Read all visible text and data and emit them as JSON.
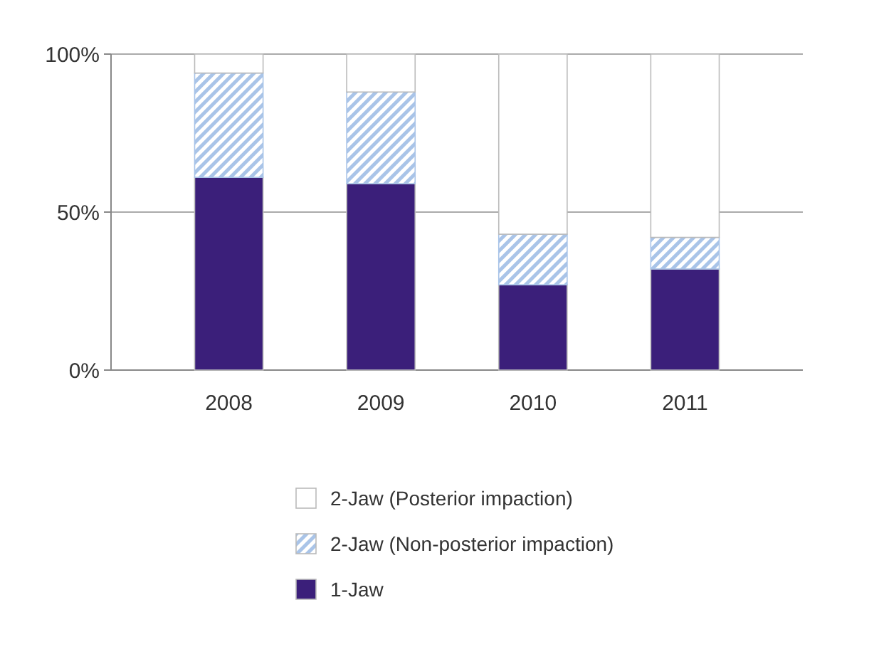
{
  "chart_data": {
    "type": "bar",
    "stacked": true,
    "categories": [
      "2008",
      "2009",
      "2010",
      "2011"
    ],
    "series": [
      {
        "name": "1-Jaw",
        "color": "#3b1f7a",
        "values": [
          61,
          59,
          27,
          32
        ]
      },
      {
        "name": "2-Jaw (Non-posterior impaction)",
        "color": "#a9c4e8",
        "values": [
          33,
          29,
          16,
          10
        ]
      },
      {
        "name": "2-Jaw (Posterior impaction)",
        "color": "#ffffff",
        "values": [
          6,
          12,
          57,
          58
        ]
      }
    ],
    "ylim": [
      0,
      100
    ],
    "yticks": [
      {
        "value": 0,
        "label": "0%"
      },
      {
        "value": 50,
        "label": "50%"
      },
      {
        "value": 100,
        "label": "100%"
      }
    ],
    "grid": "y",
    "legend": "bottom"
  }
}
